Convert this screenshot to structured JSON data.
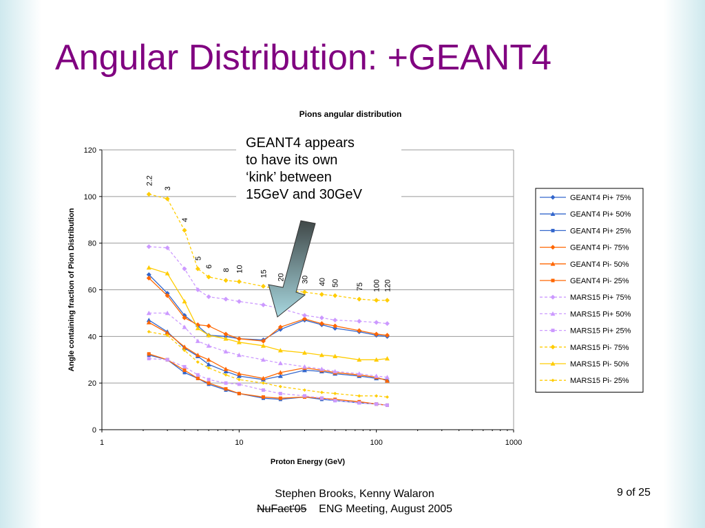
{
  "slide": {
    "title": "Angular Distribution: +GEANT4",
    "callout": [
      "GEANT4 appears",
      "to have its own",
      "‘kink’ between",
      "15GeV and 30GeV"
    ],
    "footer_authors": "Stephen Brooks, Kenny Walaron",
    "footer_event_struck": "NuFact'05",
    "footer_event": "ENG Meeting, August 2005",
    "page": "9 of 25"
  },
  "chart_data": {
    "type": "line",
    "title": "Pions angular distribution",
    "xlabel": "Proton Energy (GeV)",
    "ylabel": "Angle containing fraction of Pion Distribution",
    "xscale": "log",
    "xlim": [
      1,
      1000
    ],
    "ylim": [
      0,
      120
    ],
    "xticks": [
      "1",
      "10",
      "100",
      "1000"
    ],
    "yticks": [
      "0",
      "20",
      "40",
      "60",
      "80",
      "100",
      "120"
    ],
    "grid": "horizontal",
    "legend_position": "right",
    "x": [
      2.2,
      3,
      4,
      5,
      6,
      8,
      10,
      15,
      20,
      30,
      40,
      50,
      75,
      100,
      120
    ],
    "point_labels": [
      "2.2",
      "3",
      "4",
      "5",
      "6",
      "8",
      "10",
      "15",
      "20",
      "30",
      "40",
      "50",
      "75",
      "100",
      "120"
    ],
    "series": [
      {
        "name": "GEANT4 Pi+ 75%",
        "color": "#3366cc",
        "marker": "diamond",
        "dash": false,
        "values": [
          66.5,
          58.5,
          49,
          44.5,
          40.5,
          40,
          39,
          38.5,
          43,
          47,
          45,
          43.5,
          42,
          40.5,
          40
        ]
      },
      {
        "name": "GEANT4 Pi+ 50%",
        "color": "#3366cc",
        "marker": "triangle",
        "dash": false,
        "values": [
          47,
          42,
          35,
          31.5,
          28,
          25,
          23,
          21.5,
          23,
          25.5,
          25,
          24,
          23,
          22,
          21.5
        ]
      },
      {
        "name": "GEANT4 Pi+ 25%",
        "color": "#3366cc",
        "marker": "square",
        "dash": false,
        "values": [
          32,
          30,
          24.5,
          22,
          19.5,
          17,
          15.5,
          13.5,
          13,
          14,
          13,
          12.5,
          11.5,
          11,
          10.5
        ]
      },
      {
        "name": "GEANT4 Pi- 75%",
        "color": "#ff6600",
        "marker": "diamond",
        "dash": false,
        "values": [
          65,
          57.5,
          48,
          45,
          44.5,
          41,
          39,
          38,
          44,
          47.5,
          45.5,
          44.5,
          42.5,
          41,
          40.5
        ]
      },
      {
        "name": "GEANT4 Pi- 50%",
        "color": "#ff6600",
        "marker": "triangle",
        "dash": false,
        "values": [
          46,
          41.5,
          35.5,
          32,
          30,
          26,
          24,
          22,
          24.5,
          26.5,
          25.5,
          24.5,
          23.5,
          22.5,
          21
        ]
      },
      {
        "name": "GEANT4 Pi- 25%",
        "color": "#ff6600",
        "marker": "square",
        "dash": false,
        "values": [
          32.5,
          30,
          25.5,
          22,
          20,
          17.5,
          15.5,
          14,
          13.5,
          14,
          13.5,
          13,
          12,
          11,
          10.5
        ]
      },
      {
        "name": "MARS15 Pi+ 75%",
        "color": "#cc99ff",
        "marker": "diamond",
        "dash": true,
        "values": [
          78.5,
          78,
          69,
          60,
          57,
          56,
          55,
          53.5,
          52,
          49,
          48,
          47,
          46.5,
          46,
          45.5
        ]
      },
      {
        "name": "MARS15 Pi+ 50%",
        "color": "#cc99ff",
        "marker": "triangle",
        "dash": true,
        "values": [
          50,
          50,
          44,
          38,
          36,
          33.5,
          32,
          30,
          28.5,
          27,
          26,
          25,
          24,
          23,
          22.5
        ]
      },
      {
        "name": "MARS15 Pi+ 25%",
        "color": "#cc99ff",
        "marker": "square",
        "dash": true,
        "values": [
          30.5,
          30,
          27,
          23.5,
          21.5,
          20,
          19.5,
          17,
          15.5,
          14.5,
          13.5,
          12.5,
          11.5,
          11,
          10.5
        ]
      },
      {
        "name": "MARS15 Pi- 75%",
        "color": "#ffcc00",
        "marker": "diamond",
        "dash": true,
        "values": [
          101,
          99,
          85.5,
          69,
          65.5,
          64,
          63.5,
          61.5,
          60,
          59,
          58,
          57.5,
          56,
          55.5,
          55.5
        ]
      },
      {
        "name": "MARS15 Pi- 50%",
        "color": "#ffcc00",
        "marker": "triangle",
        "dash": false,
        "values": [
          69.5,
          67,
          55,
          43.5,
          40.5,
          39,
          37.5,
          36,
          34,
          33,
          32,
          31.5,
          30,
          30,
          30.5
        ]
      },
      {
        "name": "MARS15 Pi- 25%",
        "color": "#ffcc00",
        "marker": "diamond-small",
        "dash": true,
        "values": [
          42,
          40.5,
          34,
          29,
          26.5,
          23.5,
          21.5,
          20,
          18.5,
          17,
          16,
          15.5,
          14.5,
          14.5,
          14
        ]
      }
    ]
  }
}
